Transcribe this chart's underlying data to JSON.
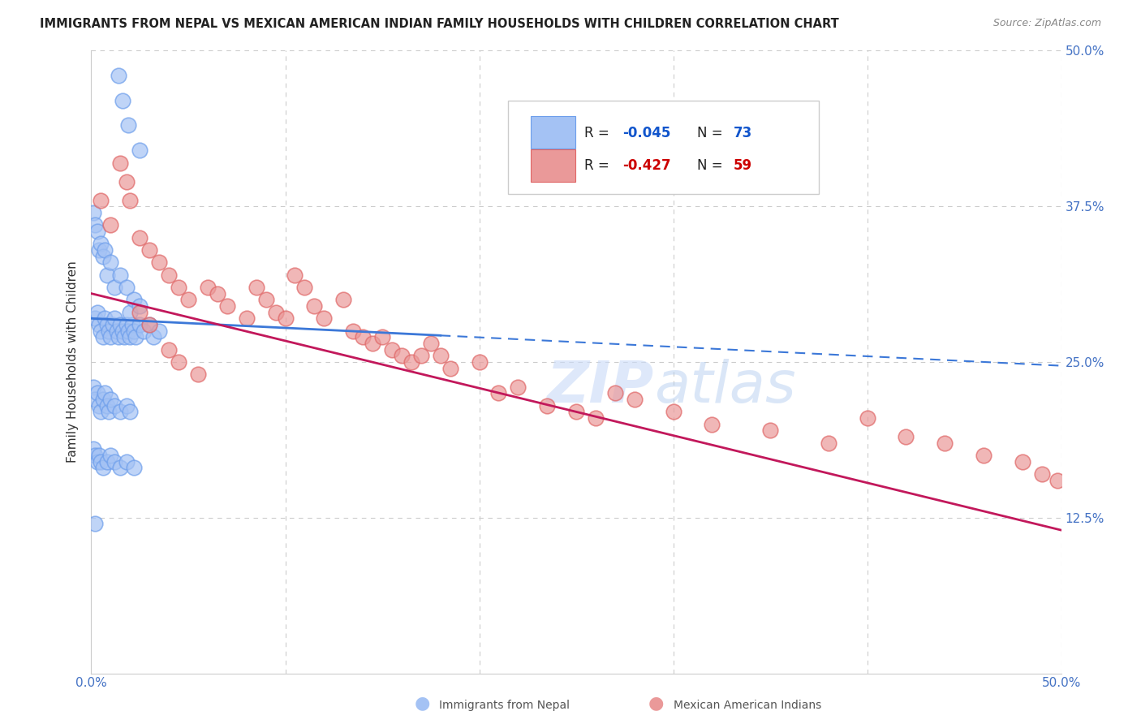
{
  "title": "IMMIGRANTS FROM NEPAL VS MEXICAN AMERICAN INDIAN FAMILY HOUSEHOLDS WITH CHILDREN CORRELATION CHART",
  "source": "Source: ZipAtlas.com",
  "ylabel": "Family Households with Children",
  "x_min": 0.0,
  "x_max": 0.5,
  "y_min": 0.0,
  "y_max": 0.5,
  "color_blue": "#a4c2f4",
  "color_blue_edge": "#6d9eeb",
  "color_pink": "#ea9999",
  "color_pink_edge": "#e06666",
  "color_blue_line": "#3c78d8",
  "color_pink_line": "#c2185b",
  "color_blue_text": "#1155cc",
  "color_pink_text": "#cc0000",
  "watermark": "ZIPatlas",
  "nepal_x": [
    0.002,
    0.003,
    0.004,
    0.005,
    0.006,
    0.007,
    0.008,
    0.009,
    0.01,
    0.011,
    0.012,
    0.013,
    0.014,
    0.015,
    0.016,
    0.017,
    0.018,
    0.019,
    0.02,
    0.021,
    0.022,
    0.023,
    0.025,
    0.027,
    0.03,
    0.032,
    0.035,
    0.001,
    0.002,
    0.003,
    0.004,
    0.005,
    0.006,
    0.007,
    0.008,
    0.01,
    0.012,
    0.015,
    0.018,
    0.02,
    0.022,
    0.025,
    0.001,
    0.002,
    0.003,
    0.004,
    0.005,
    0.006,
    0.007,
    0.008,
    0.009,
    0.01,
    0.012,
    0.015,
    0.018,
    0.02,
    0.001,
    0.002,
    0.003,
    0.004,
    0.005,
    0.006,
    0.008,
    0.01,
    0.012,
    0.015,
    0.018,
    0.022,
    0.002,
    0.014,
    0.016,
    0.019,
    0.025
  ],
  "nepal_y": [
    0.285,
    0.29,
    0.28,
    0.275,
    0.27,
    0.285,
    0.28,
    0.275,
    0.27,
    0.28,
    0.285,
    0.275,
    0.27,
    0.28,
    0.275,
    0.27,
    0.28,
    0.275,
    0.27,
    0.28,
    0.275,
    0.27,
    0.28,
    0.275,
    0.28,
    0.27,
    0.275,
    0.37,
    0.36,
    0.355,
    0.34,
    0.345,
    0.335,
    0.34,
    0.32,
    0.33,
    0.31,
    0.32,
    0.31,
    0.29,
    0.3,
    0.295,
    0.23,
    0.22,
    0.225,
    0.215,
    0.21,
    0.22,
    0.225,
    0.215,
    0.21,
    0.22,
    0.215,
    0.21,
    0.215,
    0.21,
    0.18,
    0.175,
    0.17,
    0.175,
    0.17,
    0.165,
    0.17,
    0.175,
    0.17,
    0.165,
    0.17,
    0.165,
    0.12,
    0.48,
    0.46,
    0.44,
    0.42
  ],
  "mexican_x": [
    0.005,
    0.01,
    0.015,
    0.018,
    0.02,
    0.025,
    0.03,
    0.035,
    0.04,
    0.045,
    0.05,
    0.06,
    0.065,
    0.07,
    0.08,
    0.085,
    0.09,
    0.095,
    0.1,
    0.105,
    0.11,
    0.115,
    0.12,
    0.13,
    0.135,
    0.14,
    0.145,
    0.15,
    0.155,
    0.16,
    0.165,
    0.17,
    0.175,
    0.18,
    0.185,
    0.2,
    0.21,
    0.22,
    0.235,
    0.25,
    0.26,
    0.27,
    0.28,
    0.3,
    0.32,
    0.35,
    0.38,
    0.4,
    0.42,
    0.44,
    0.46,
    0.48,
    0.49,
    0.498,
    0.025,
    0.03,
    0.04,
    0.045,
    0.055
  ],
  "mexican_y": [
    0.38,
    0.36,
    0.41,
    0.395,
    0.38,
    0.35,
    0.34,
    0.33,
    0.32,
    0.31,
    0.3,
    0.31,
    0.305,
    0.295,
    0.285,
    0.31,
    0.3,
    0.29,
    0.285,
    0.32,
    0.31,
    0.295,
    0.285,
    0.3,
    0.275,
    0.27,
    0.265,
    0.27,
    0.26,
    0.255,
    0.25,
    0.255,
    0.265,
    0.255,
    0.245,
    0.25,
    0.225,
    0.23,
    0.215,
    0.21,
    0.205,
    0.225,
    0.22,
    0.21,
    0.2,
    0.195,
    0.185,
    0.205,
    0.19,
    0.185,
    0.175,
    0.17,
    0.16,
    0.155,
    0.29,
    0.28,
    0.26,
    0.25,
    0.24
  ],
  "blue_line_x0": 0.0,
  "blue_line_x1": 0.5,
  "blue_line_y0": 0.285,
  "blue_line_y1": 0.247,
  "pink_line_x0": 0.0,
  "pink_line_x1": 0.5,
  "pink_line_y0": 0.305,
  "pink_line_y1": 0.115
}
